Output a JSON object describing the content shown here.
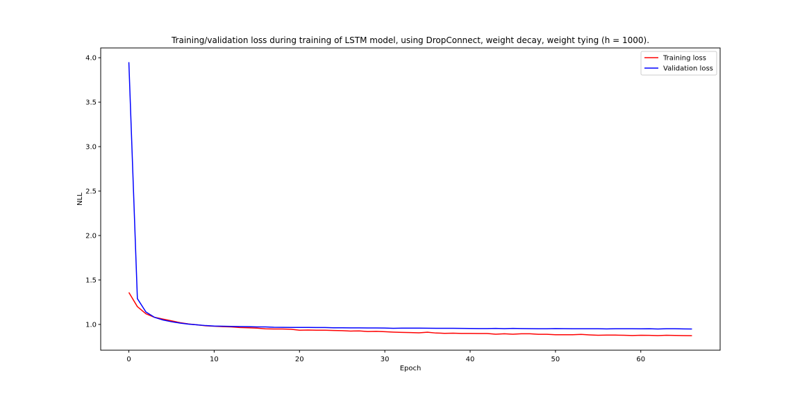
{
  "chart_data": {
    "type": "line",
    "title": "Training/validation loss during training of LSTM model, using DropConnect, weight decay, weight tying (h = 1000).",
    "xlabel": "Epoch",
    "ylabel": "NLL",
    "xlim": [
      -3.3,
      69.3
    ],
    "ylim": [
      0.71,
      4.11
    ],
    "x_ticks": [
      0,
      10,
      20,
      30,
      40,
      50,
      60
    ],
    "x_tick_labels": [
      "0",
      "10",
      "20",
      "30",
      "40",
      "50",
      "60"
    ],
    "y_ticks": [
      1.0,
      1.5,
      2.0,
      2.5,
      3.0,
      3.5,
      4.0
    ],
    "y_tick_labels": [
      "1.0",
      "1.5",
      "2.0",
      "2.5",
      "3.0",
      "3.5",
      "4.0"
    ],
    "grid": false,
    "legend_position": "top-right",
    "x": [
      0,
      1,
      2,
      3,
      4,
      5,
      6,
      7,
      8,
      9,
      10,
      11,
      12,
      13,
      14,
      15,
      16,
      17,
      18,
      19,
      20,
      21,
      22,
      23,
      24,
      25,
      26,
      27,
      28,
      29,
      30,
      31,
      32,
      33,
      34,
      35,
      36,
      37,
      38,
      39,
      40,
      41,
      42,
      43,
      44,
      45,
      46,
      47,
      48,
      49,
      50,
      51,
      52,
      53,
      54,
      55,
      56,
      57,
      58,
      59,
      60,
      61,
      62,
      63,
      64,
      65,
      66
    ],
    "series": [
      {
        "name": "Training loss",
        "color": "#ff0000",
        "values": [
          1.36,
          1.2,
          1.12,
          1.08,
          1.06,
          1.04,
          1.02,
          1.005,
          0.995,
          0.985,
          0.98,
          0.975,
          0.972,
          0.965,
          0.962,
          0.958,
          0.95,
          0.948,
          0.948,
          0.945,
          0.935,
          0.937,
          0.935,
          0.935,
          0.932,
          0.93,
          0.925,
          0.927,
          0.92,
          0.922,
          0.918,
          0.913,
          0.91,
          0.908,
          0.905,
          0.912,
          0.903,
          0.9,
          0.902,
          0.899,
          0.899,
          0.898,
          0.898,
          0.89,
          0.895,
          0.89,
          0.895,
          0.895,
          0.889,
          0.889,
          0.884,
          0.884,
          0.884,
          0.888,
          0.882,
          0.878,
          0.88,
          0.88,
          0.878,
          0.875,
          0.878,
          0.877,
          0.874,
          0.878,
          0.876,
          0.874,
          0.873
        ]
      },
      {
        "name": "Validation loss",
        "color": "#0000ff",
        "values": [
          3.95,
          1.29,
          1.14,
          1.08,
          1.05,
          1.03,
          1.015,
          1.003,
          0.995,
          0.987,
          0.982,
          0.98,
          0.978,
          0.976,
          0.975,
          0.972,
          0.972,
          0.968,
          0.967,
          0.966,
          0.966,
          0.966,
          0.965,
          0.965,
          0.962,
          0.962,
          0.961,
          0.961,
          0.96,
          0.96,
          0.959,
          0.956,
          0.958,
          0.958,
          0.958,
          0.957,
          0.956,
          0.956,
          0.956,
          0.955,
          0.954,
          0.953,
          0.953,
          0.955,
          0.952,
          0.955,
          0.953,
          0.952,
          0.951,
          0.951,
          0.953,
          0.952,
          0.951,
          0.951,
          0.951,
          0.951,
          0.949,
          0.951,
          0.951,
          0.951,
          0.95,
          0.951,
          0.948,
          0.951,
          0.951,
          0.949,
          0.948
        ]
      }
    ]
  }
}
